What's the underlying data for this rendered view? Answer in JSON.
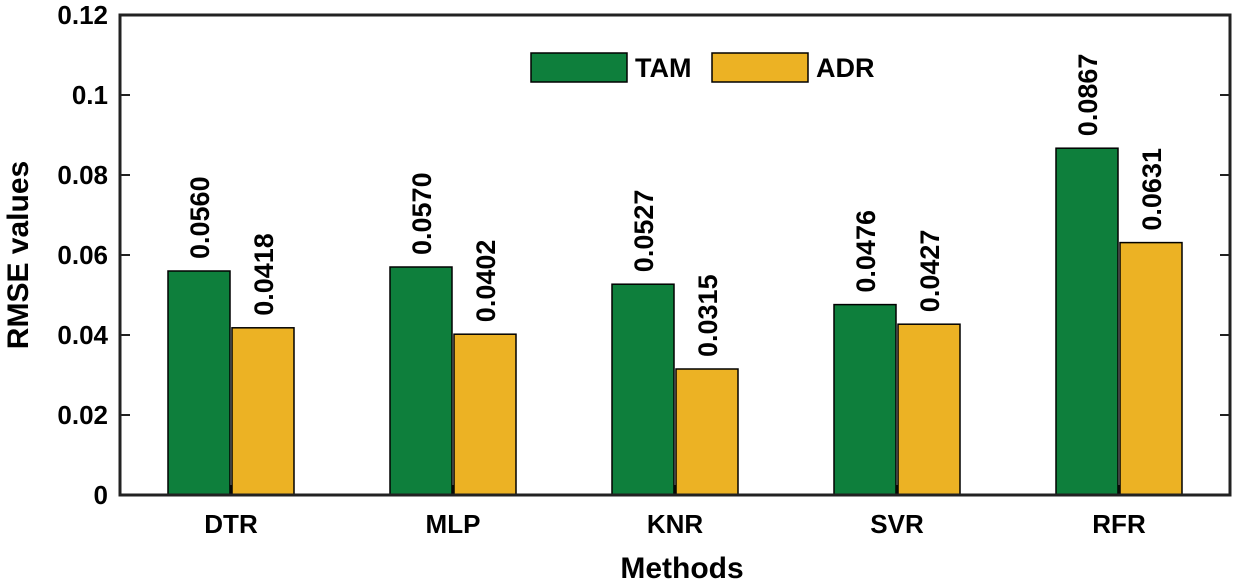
{
  "chart_data": {
    "type": "bar",
    "title": "",
    "xlabel": "Methods",
    "ylabel": "RMSE values",
    "categories": [
      "DTR",
      "MLP",
      "KNR",
      "SVR",
      "RFR"
    ],
    "series": [
      {
        "name": "TAM",
        "color": "#0e7f3c",
        "values": [
          0.056,
          0.057,
          0.0527,
          0.0476,
          0.0867
        ],
        "labels": [
          "0.0560",
          "0.0570",
          "0.0527",
          "0.0476",
          "0.0867"
        ]
      },
      {
        "name": "ADR",
        "color": "#ecb224",
        "values": [
          0.0418,
          0.0402,
          0.0315,
          0.0427,
          0.0631
        ],
        "labels": [
          "0.0418",
          "0.0402",
          "0.0315",
          "0.0427",
          "0.0631"
        ]
      }
    ],
    "ylim": [
      0,
      0.12
    ],
    "yticks": [
      0,
      0.02,
      0.04,
      0.06,
      0.08,
      0.1,
      0.12
    ],
    "ytick_labels": [
      "0",
      "0.02",
      "0.04",
      "0.06",
      "0.08",
      "0.1",
      "0.12"
    ],
    "grid": false,
    "legend_position": "top-center"
  }
}
